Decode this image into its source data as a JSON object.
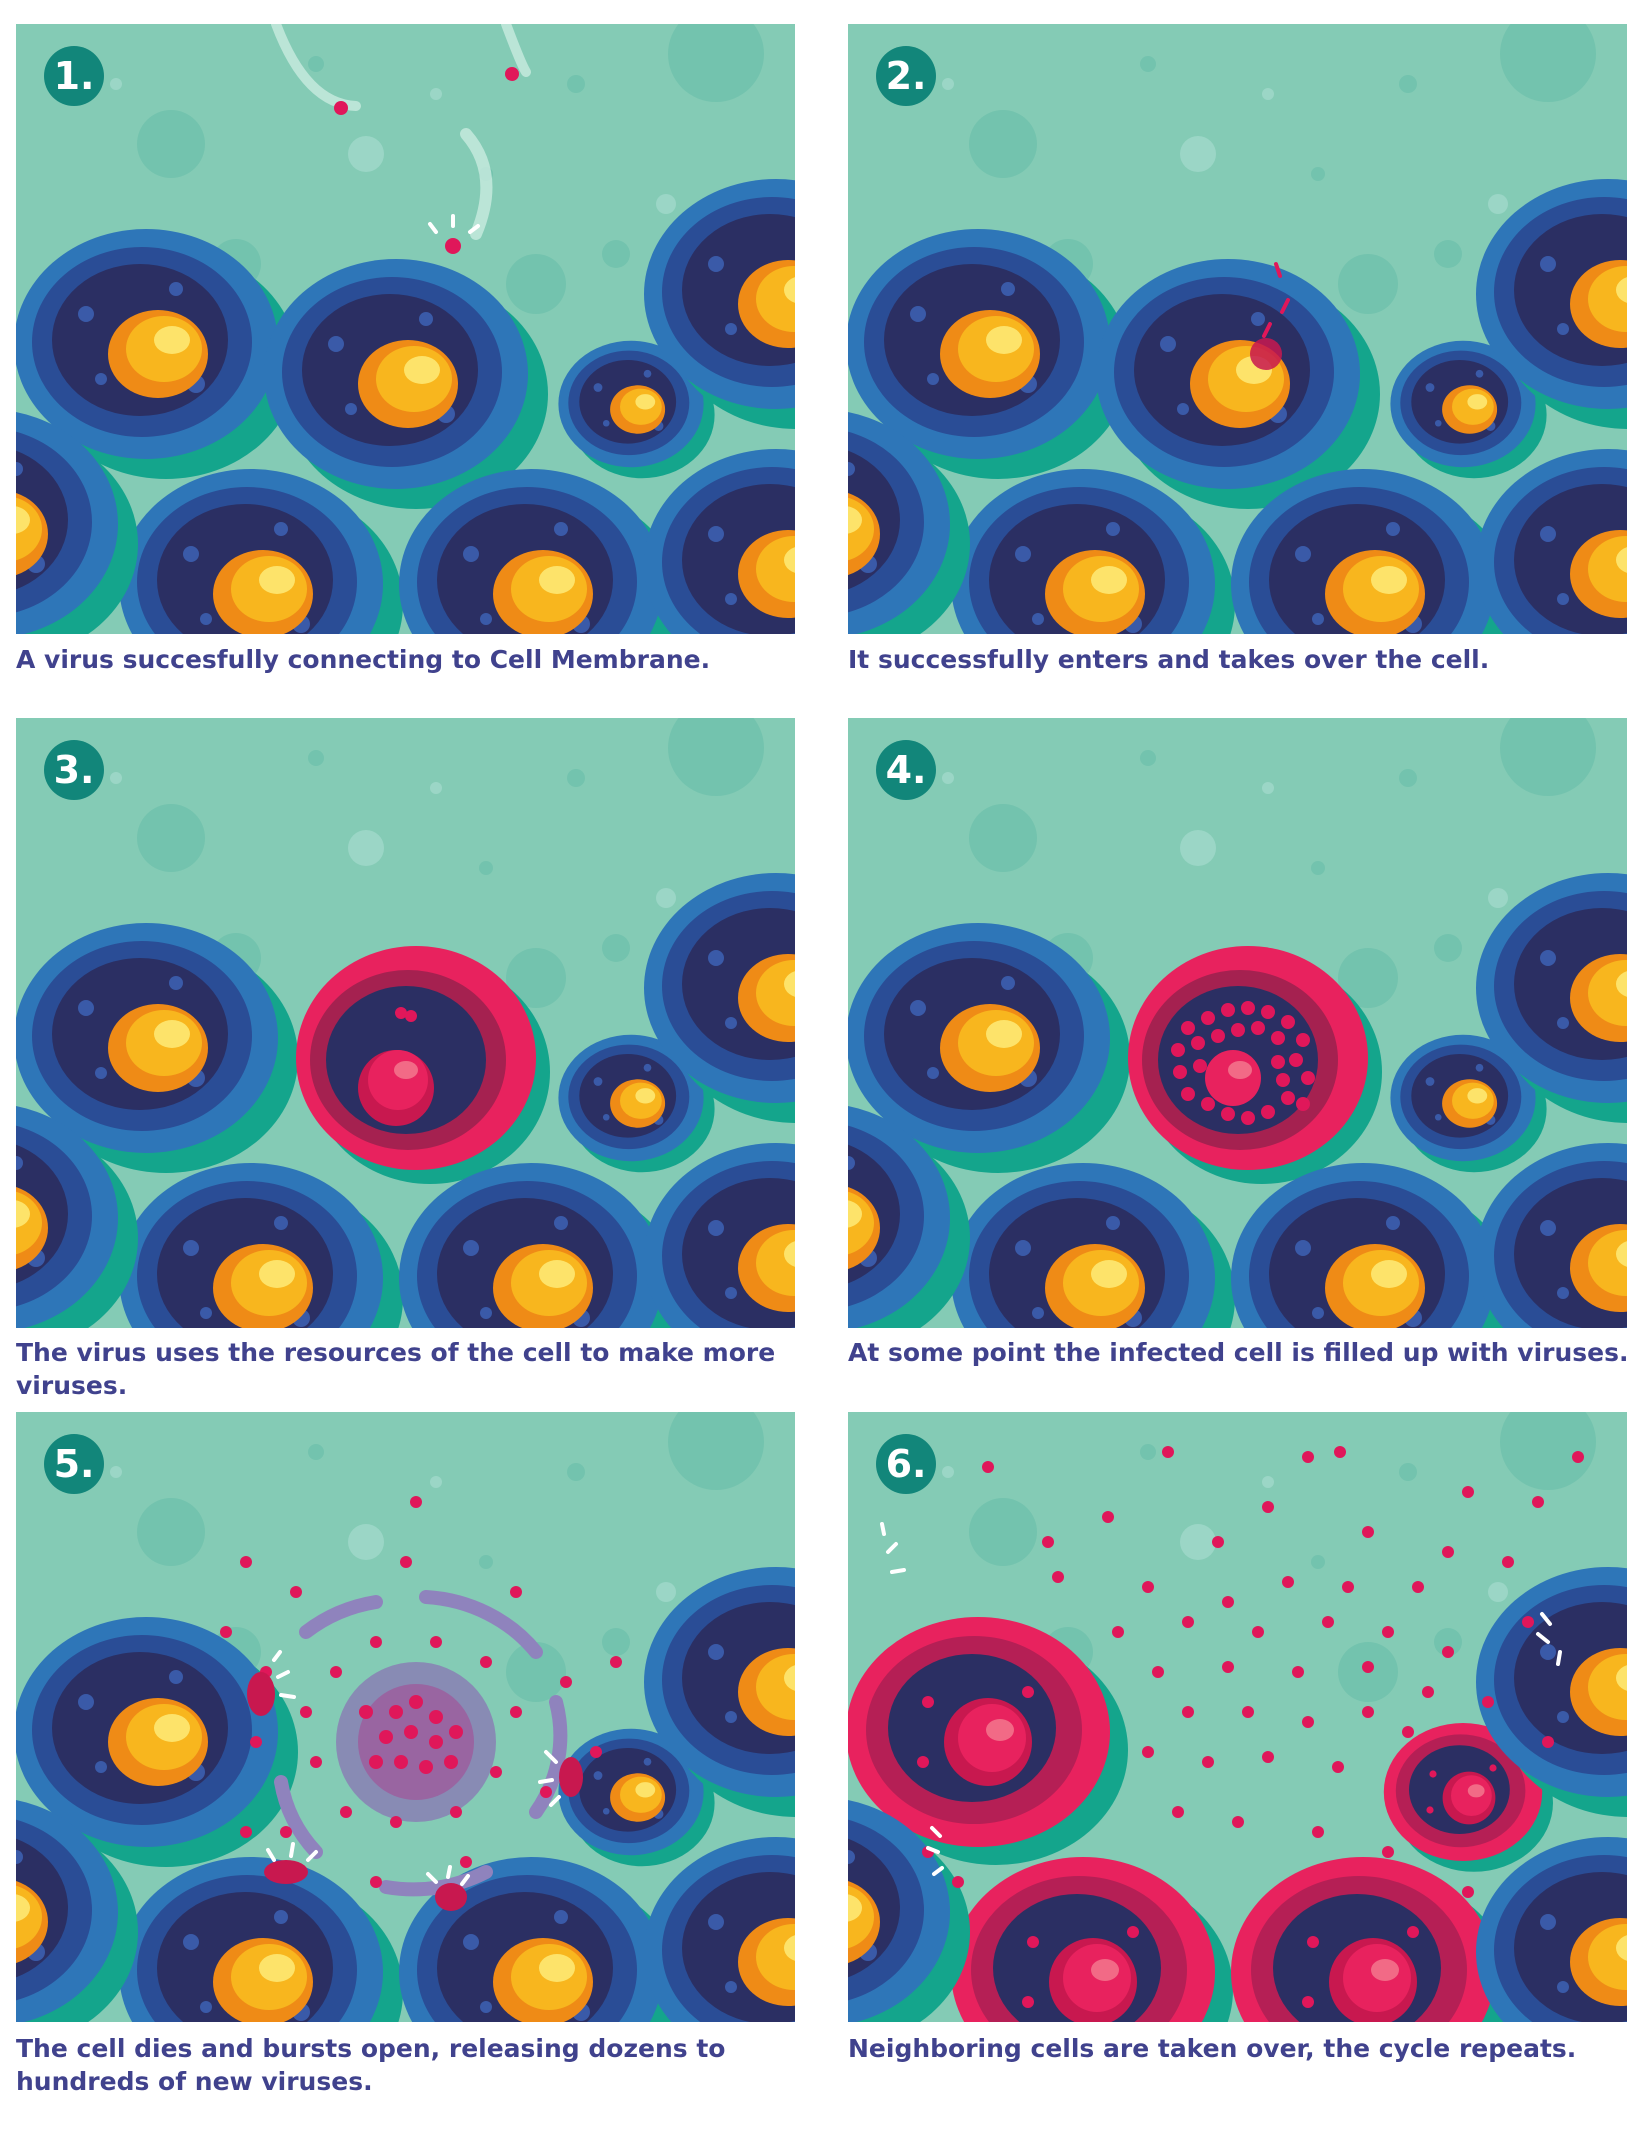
{
  "colors": {
    "background": "#84cbb5",
    "membrane_dark": "#2a5a9c",
    "cytoplasm": "#2b2f63",
    "nucleus": "#f6b11f",
    "infected": "#e8225e",
    "virus": "#e0175a",
    "badge": "#12867a",
    "caption_text": "#40428d"
  },
  "panels": [
    {
      "number": "1.",
      "caption": "A virus succesfully connecting to Cell Membrane."
    },
    {
      "number": "2.",
      "caption": "It successfully enters and takes over the cell."
    },
    {
      "number": "3.",
      "caption": " The virus uses the resources of the cell to make more viruses."
    },
    {
      "number": "4.",
      "caption": "At some point the infected cell is filled up with viruses."
    },
    {
      "number": "5.",
      "caption": "The cell dies and bursts open, releasing dozens to hundreds of new viruses."
    },
    {
      "number": "6.",
      "caption": "Neighboring cells are taken over, the cycle repeats."
    }
  ]
}
